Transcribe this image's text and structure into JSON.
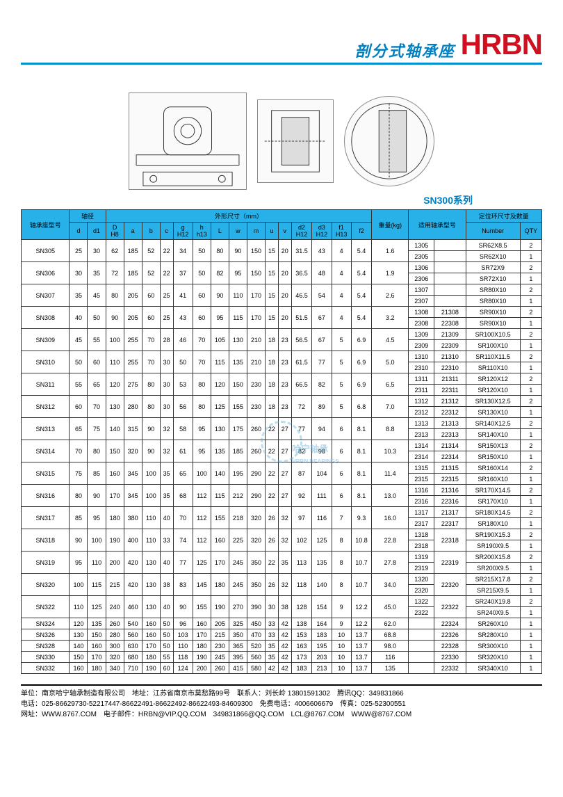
{
  "header": {
    "subtitle": "剖分式轴承座",
    "brand": "HRBN"
  },
  "series": "SN300系列",
  "watermark": {
    "cn": "哈宁轴承",
    "en": "HRBN BEARINGS"
  },
  "headers": {
    "model": "轴承座型号",
    "shaft": "轴径",
    "dims": "外形尺寸（mm）",
    "weight": "重量(kg)",
    "bearing": "适用轴承型号",
    "ring": "定位环尺寸及数量",
    "d": "d",
    "d1": "d1",
    "dh8": "D\nH8",
    "a": "a",
    "b": "b",
    "c": "c",
    "gh12": "g\nH12",
    "hh13": "h\nh13",
    "L": "L",
    "w": "w",
    "m": "m",
    "u": "u",
    "v": "v",
    "d2": "d2\nH12",
    "d3": "d3\nH12",
    "f1": "f1\nH13",
    "f2": "f2",
    "number": "Number",
    "qty": "QTY"
  },
  "rows": [
    {
      "m": "SN305",
      "d": "25",
      "d1": "30",
      "dh8": "62",
      "a": "185",
      "b": "52",
      "c": "22",
      "g": "34",
      "h": "50",
      "L": "80",
      "w": "90",
      "mm": "150",
      "u": "15",
      "v": "20",
      "d2": "31.5",
      "d3": "43",
      "f1": "4",
      "f2": "5.4",
      "kg": "1.6",
      "br": [
        [
          "1305",
          ""
        ],
        [
          "2305",
          ""
        ]
      ],
      "rn": [
        [
          "SR62X8.5",
          "2"
        ],
        [
          "SR62X10",
          "1"
        ]
      ]
    },
    {
      "m": "SN306",
      "d": "30",
      "d1": "35",
      "dh8": "72",
      "a": "185",
      "b": "52",
      "c": "22",
      "g": "37",
      "h": "50",
      "L": "82",
      "w": "95",
      "mm": "150",
      "u": "15",
      "v": "20",
      "d2": "36.5",
      "d3": "48",
      "f1": "4",
      "f2": "5.4",
      "kg": "1.9",
      "br": [
        [
          "1306",
          ""
        ],
        [
          "2306",
          ""
        ]
      ],
      "rn": [
        [
          "SR72X9",
          "2"
        ],
        [
          "SR72X10",
          "1"
        ]
      ]
    },
    {
      "m": "SN307",
      "d": "35",
      "d1": "45",
      "dh8": "80",
      "a": "205",
      "b": "60",
      "c": "25",
      "g": "41",
      "h": "60",
      "L": "90",
      "w": "110",
      "mm": "170",
      "u": "15",
      "v": "20",
      "d2": "46.5",
      "d3": "54",
      "f1": "4",
      "f2": "5.4",
      "kg": "2.6",
      "br": [
        [
          "1307",
          ""
        ],
        [
          "2307",
          ""
        ]
      ],
      "rn": [
        [
          "SR80X10",
          "2"
        ],
        [
          "SR80X10",
          "1"
        ]
      ]
    },
    {
      "m": "SN308",
      "d": "40",
      "d1": "50",
      "dh8": "90",
      "a": "205",
      "b": "60",
      "c": "25",
      "g": "43",
      "h": "60",
      "L": "95",
      "w": "115",
      "mm": "170",
      "u": "15",
      "v": "20",
      "d2": "51.5",
      "d3": "67",
      "f1": "4",
      "f2": "5.4",
      "kg": "3.2",
      "br": [
        [
          "1308",
          "21308"
        ],
        [
          "2308",
          "22308"
        ]
      ],
      "rn": [
        [
          "SR90X10",
          "2"
        ],
        [
          "SR90X10",
          "1"
        ]
      ]
    },
    {
      "m": "SN309",
      "d": "45",
      "d1": "55",
      "dh8": "100",
      "a": "255",
      "b": "70",
      "c": "28",
      "g": "46",
      "h": "70",
      "L": "105",
      "w": "130",
      "mm": "210",
      "u": "18",
      "v": "23",
      "d2": "56.5",
      "d3": "67",
      "f1": "5",
      "f2": "6.9",
      "kg": "4.5",
      "br": [
        [
          "1309",
          "21309"
        ],
        [
          "2309",
          "22309"
        ]
      ],
      "rn": [
        [
          "SR100X10.5",
          "2"
        ],
        [
          "SR100X10",
          "1"
        ]
      ]
    },
    {
      "m": "SN310",
      "d": "50",
      "d1": "60",
      "dh8": "110",
      "a": "255",
      "b": "70",
      "c": "30",
      "g": "50",
      "h": "70",
      "L": "115",
      "w": "135",
      "mm": "210",
      "u": "18",
      "v": "23",
      "d2": "61.5",
      "d3": "77",
      "f1": "5",
      "f2": "6.9",
      "kg": "5.0",
      "br": [
        [
          "1310",
          "21310"
        ],
        [
          "2310",
          "22310"
        ]
      ],
      "rn": [
        [
          "SR110X11.5",
          "2"
        ],
        [
          "SR110X10",
          "1"
        ]
      ]
    },
    {
      "m": "SN311",
      "d": "55",
      "d1": "65",
      "dh8": "120",
      "a": "275",
      "b": "80",
      "c": "30",
      "g": "53",
      "h": "80",
      "L": "120",
      "w": "150",
      "mm": "230",
      "u": "18",
      "v": "23",
      "d2": "66.5",
      "d3": "82",
      "f1": "5",
      "f2": "6.9",
      "kg": "6.5",
      "br": [
        [
          "1311",
          "21311"
        ],
        [
          "2311",
          "22311"
        ]
      ],
      "rn": [
        [
          "SR120X12",
          "2"
        ],
        [
          "SR120X10",
          "1"
        ]
      ]
    },
    {
      "m": "SN312",
      "d": "60",
      "d1": "70",
      "dh8": "130",
      "a": "280",
      "b": "80",
      "c": "30",
      "g": "56",
      "h": "80",
      "L": "125",
      "w": "155",
      "mm": "230",
      "u": "18",
      "v": "23",
      "d2": "72",
      "d3": "89",
      "f1": "5",
      "f2": "6.8",
      "kg": "7.0",
      "br": [
        [
          "1312",
          "21312"
        ],
        [
          "2312",
          "22312"
        ]
      ],
      "rn": [
        [
          "SR130X12.5",
          "2"
        ],
        [
          "SR130X10",
          "1"
        ]
      ]
    },
    {
      "m": "SN313",
      "d": "65",
      "d1": "75",
      "dh8": "140",
      "a": "315",
      "b": "90",
      "c": "32",
      "g": "58",
      "h": "95",
      "L": "130",
      "w": "175",
      "mm": "260",
      "u": "22",
      "v": "27",
      "d2": "77",
      "d3": "94",
      "f1": "6",
      "f2": "8.1",
      "kg": "8.8",
      "br": [
        [
          "1313",
          "21313"
        ],
        [
          "2313",
          "22313"
        ]
      ],
      "rn": [
        [
          "SR140X12.5",
          "2"
        ],
        [
          "SR140X10",
          "1"
        ]
      ]
    },
    {
      "m": "SN314",
      "d": "70",
      "d1": "80",
      "dh8": "150",
      "a": "320",
      "b": "90",
      "c": "32",
      "g": "61",
      "h": "95",
      "L": "135",
      "w": "185",
      "mm": "260",
      "u": "22",
      "v": "27",
      "d2": "82",
      "d3": "98",
      "f1": "6",
      "f2": "8.1",
      "kg": "10.3",
      "br": [
        [
          "1314",
          "21314"
        ],
        [
          "2314",
          "22314"
        ]
      ],
      "rn": [
        [
          "SR150X13",
          "2"
        ],
        [
          "SR150X10",
          "1"
        ]
      ]
    },
    {
      "m": "SN315",
      "d": "75",
      "d1": "85",
      "dh8": "160",
      "a": "345",
      "b": "100",
      "c": "35",
      "g": "65",
      "h": "100",
      "L": "140",
      "w": "195",
      "mm": "290",
      "u": "22",
      "v": "27",
      "d2": "87",
      "d3": "104",
      "f1": "6",
      "f2": "8.1",
      "kg": "11.4",
      "br": [
        [
          "1315",
          "21315"
        ],
        [
          "2315",
          "22315"
        ]
      ],
      "rn": [
        [
          "SR160X14",
          "2"
        ],
        [
          "SR160X10",
          "1"
        ]
      ]
    },
    {
      "m": "SN316",
      "d": "80",
      "d1": "90",
      "dh8": "170",
      "a": "345",
      "b": "100",
      "c": "35",
      "g": "68",
      "h": "112",
      "L": "115",
      "w": "212",
      "mm": "290",
      "u": "22",
      "v": "27",
      "d2": "92",
      "d3": "111",
      "f1": "6",
      "f2": "8.1",
      "kg": "13.0",
      "br": [
        [
          "1316",
          "21316"
        ],
        [
          "2316",
          "22316"
        ]
      ],
      "rn": [
        [
          "SR170X14.5",
          "2"
        ],
        [
          "SR170X10",
          "1"
        ]
      ]
    },
    {
      "m": "SN317",
      "d": "85",
      "d1": "95",
      "dh8": "180",
      "a": "380",
      "b": "110",
      "c": "40",
      "g": "70",
      "h": "112",
      "L": "155",
      "w": "218",
      "mm": "320",
      "u": "26",
      "v": "32",
      "d2": "97",
      "d3": "116",
      "f1": "7",
      "f2": "9.3",
      "kg": "16.0",
      "br": [
        [
          "1317",
          "21317"
        ],
        [
          "2317",
          "22317"
        ]
      ],
      "rn": [
        [
          "SR180X14.5",
          "2"
        ],
        [
          "SR180X10",
          "1"
        ]
      ]
    },
    {
      "m": "SN318",
      "d": "90",
      "d1": "100",
      "dh8": "190",
      "a": "400",
      "b": "110",
      "c": "33",
      "g": "74",
      "h": "112",
      "L": "160",
      "w": "225",
      "mm": "320",
      "u": "26",
      "v": "32",
      "d2": "102",
      "d3": "125",
      "f1": "8",
      "f2": "10.8",
      "kg": "22.8",
      "br": [
        [
          "1318",
          ""
        ],
        [
          "2318",
          ""
        ]
      ],
      "br2": "22318",
      "rn": [
        [
          "SR190X15.3",
          "2"
        ],
        [
          "SR190X9.5",
          "1"
        ]
      ]
    },
    {
      "m": "SN319",
      "d": "95",
      "d1": "110",
      "dh8": "200",
      "a": "420",
      "b": "130",
      "c": "40",
      "g": "77",
      "h": "125",
      "L": "170",
      "w": "245",
      "mm": "350",
      "u": "22",
      "v": "35",
      "d2": "113",
      "d3": "135",
      "f1": "8",
      "f2": "10.7",
      "kg": "27.8",
      "br": [
        [
          "1319",
          ""
        ],
        [
          "2319",
          ""
        ]
      ],
      "br2": "22319",
      "rn": [
        [
          "SR200X15.8",
          "2"
        ],
        [
          "SR200X9.5",
          "1"
        ]
      ]
    },
    {
      "m": "SN320",
      "d": "100",
      "d1": "115",
      "dh8": "215",
      "a": "420",
      "b": "130",
      "c": "38",
      "g": "83",
      "h": "145",
      "L": "180",
      "w": "245",
      "mm": "350",
      "u": "26",
      "v": "32",
      "d2": "118",
      "d3": "140",
      "f1": "8",
      "f2": "10.7",
      "kg": "34.0",
      "br": [
        [
          "1320",
          ""
        ],
        [
          "2320",
          ""
        ]
      ],
      "br2": "22320",
      "rn": [
        [
          "SR215X17.8",
          "2"
        ],
        [
          "SR215X9.5",
          "1"
        ]
      ]
    },
    {
      "m": "SN322",
      "d": "110",
      "d1": "125",
      "dh8": "240",
      "a": "460",
      "b": "130",
      "c": "40",
      "g": "90",
      "h": "155",
      "L": "190",
      "w": "270",
      "mm": "390",
      "u": "30",
      "v": "38",
      "d2": "128",
      "d3": "154",
      "f1": "9",
      "f2": "12.2",
      "kg": "45.0",
      "br": [
        [
          "1322",
          ""
        ],
        [
          "2322",
          ""
        ]
      ],
      "br2": "22322",
      "rn": [
        [
          "SR240X19.8",
          "2"
        ],
        [
          "SR240X9.5",
          "1"
        ]
      ]
    }
  ],
  "rows2": [
    {
      "m": "SN324",
      "d": "120",
      "d1": "135",
      "dh8": "260",
      "a": "540",
      "b": "160",
      "c": "50",
      "g": "96",
      "h": "160",
      "L": "205",
      "w": "325",
      "mm": "450",
      "u": "33",
      "v": "42",
      "d2": "138",
      "d3": "164",
      "f1": "9",
      "f2": "12.2",
      "kg": "62.0",
      "br": "22324",
      "rn": "SR260X10",
      "q": "1"
    },
    {
      "m": "SN326",
      "d": "130",
      "d1": "150",
      "dh8": "280",
      "a": "560",
      "b": "160",
      "c": "50",
      "g": "103",
      "h": "170",
      "L": "215",
      "w": "350",
      "mm": "470",
      "u": "33",
      "v": "42",
      "d2": "153",
      "d3": "183",
      "f1": "10",
      "f2": "13.7",
      "kg": "68.8",
      "br": "22326",
      "rn": "SR280X10",
      "q": "1"
    },
    {
      "m": "SN328",
      "d": "140",
      "d1": "160",
      "dh8": "300",
      "a": "630",
      "b": "170",
      "c": "50",
      "g": "110",
      "h": "180",
      "L": "230",
      "w": "365",
      "mm": "520",
      "u": "35",
      "v": "42",
      "d2": "163",
      "d3": "195",
      "f1": "10",
      "f2": "13.7",
      "kg": "98.0",
      "br": "22328",
      "rn": "SR300X10",
      "q": "1"
    },
    {
      "m": "SN330",
      "d": "150",
      "d1": "170",
      "dh8": "320",
      "a": "680",
      "b": "180",
      "c": "55",
      "g": "118",
      "h": "190",
      "L": "245",
      "w": "395",
      "mm": "560",
      "u": "35",
      "v": "42",
      "d2": "173",
      "d3": "203",
      "f1": "10",
      "f2": "13.7",
      "kg": "116",
      "br": "22330",
      "rn": "SR320X10",
      "q": "1"
    },
    {
      "m": "SN332",
      "d": "160",
      "d1": "180",
      "dh8": "340",
      "a": "710",
      "b": "190",
      "c": "60",
      "g": "124",
      "h": "200",
      "L": "260",
      "w": "415",
      "mm": "580",
      "u": "42",
      "v": "42",
      "d2": "183",
      "d3": "213",
      "f1": "10",
      "f2": "13.7",
      "kg": "135",
      "br": "22332",
      "rn": "SR340X10",
      "q": "1"
    }
  ],
  "footer": {
    "l1": "单位：南京哈宁轴承制造有限公司　地址：江苏省南京市莫愁路99号　联系人：刘长岭 13801591302　腾讯QQ：349831866",
    "l2": "电话：025-86629730-52217447-86622491-86622492-86622493-84609300　免费电话：4006606679　传真：025-52300551",
    "l3": "网址：WWW.8767.COM　电子邮件：HRBN@VIP.QQ.COM　349831866@QQ.COM　LCL@8767.COM　WWW@8767.COM"
  }
}
